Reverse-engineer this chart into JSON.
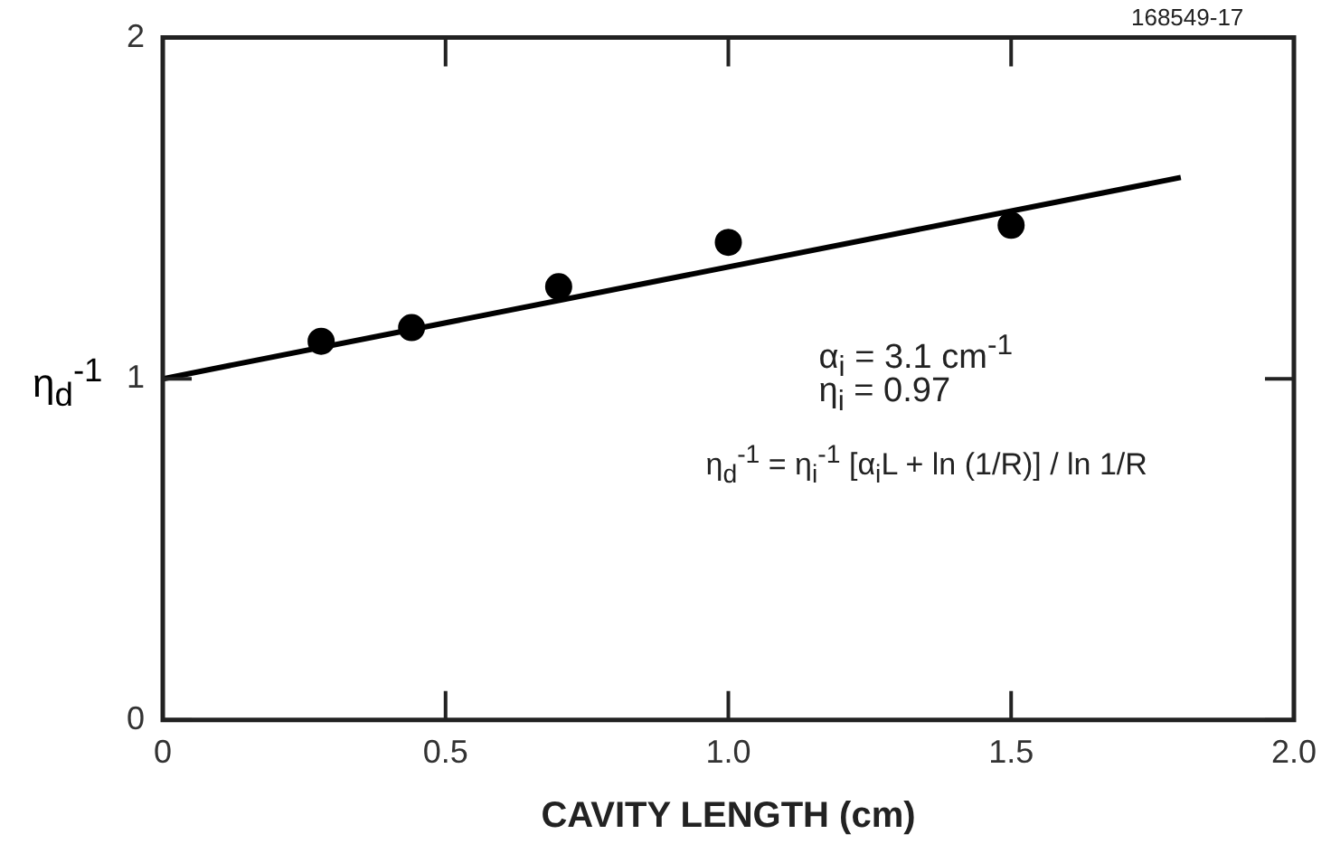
{
  "chart_data": {
    "type": "scatter",
    "xlabel": "CAVITY LENGTH (cm)",
    "ylabel": "η$_{d}$$^{-1}$",
    "annotations": [
      "168549-17",
      "α$_{i}$ = 3.1 cm$^{-1}$",
      "η$_{i}$ = 0.97",
      "η$_{d}$$^{-1}$ = η$_{i}$$^{-1}$ [α$_{i}$L + ln (1/R)] / ln 1/R"
    ],
    "series": [
      {
        "color": "#000000",
        "x": [
          0.28,
          0.44,
          0.7,
          1.0,
          1.5
        ],
        "values": [
          1.11,
          1.15,
          1.27,
          1.4,
          1.45
        ],
        "marker": "circle"
      },
      {
        "type": "line",
        "color": "#000000",
        "x": [
          0,
          1.8
        ],
        "values": [
          1.0,
          1.59
        ],
        "marker": "none",
        "line_style": "solid"
      }
    ],
    "xlim": [
      0,
      2.0
    ],
    "xticks": [
      0,
      0.5,
      {
        "value": 1.0,
        "label": "1.0"
      },
      1.5,
      {
        "value": 2.0,
        "label": "2.0"
      }
    ],
    "ylim": [
      0,
      2
    ],
    "yticks": [
      0,
      1,
      2
    ],
    "grid": false,
    "legend": false
  }
}
